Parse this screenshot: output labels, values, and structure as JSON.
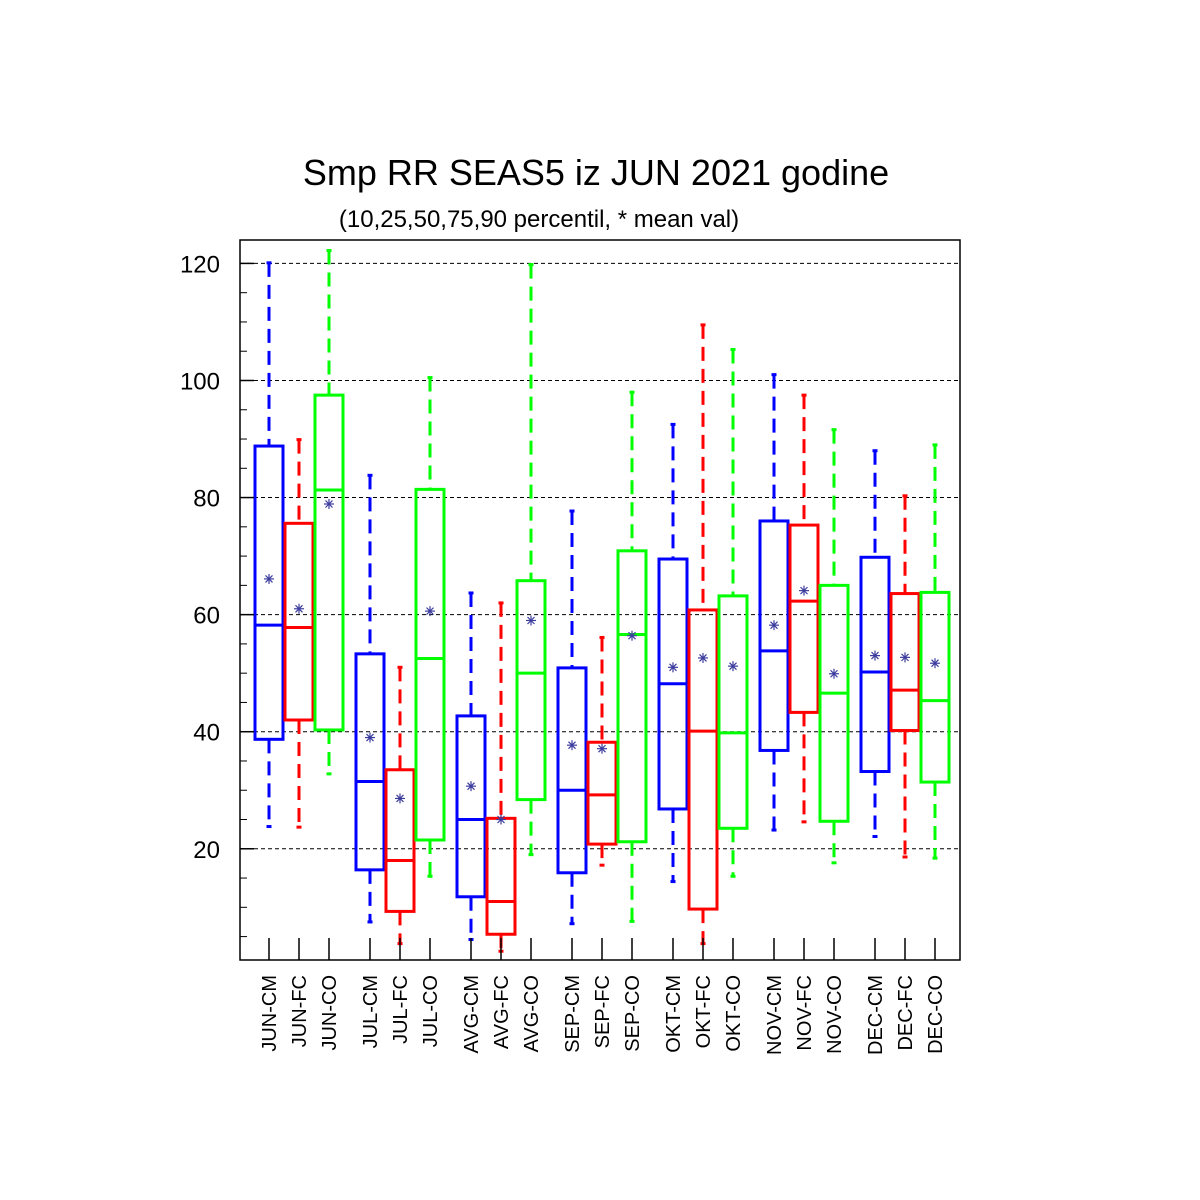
{
  "chart_data": {
    "type": "box",
    "title": "Smp RR SEAS5 iz JUN 2021 godine",
    "subtitle": "(10,25,50,75,90 percentil, * mean val)",
    "ylim": [
      1,
      124
    ],
    "yticks": [
      "20",
      "40",
      "60",
      "80",
      "100",
      "120"
    ],
    "grid": "horizontal dashed at labeled ticks",
    "series_colors": {
      "CM": "#0000ff",
      "FC": "#ff0000",
      "CO": "#00ff00"
    },
    "mean_marker_color": "#3d3d9e",
    "groups": [
      {
        "month": "JUN",
        "boxes": [
          {
            "label": "JUN-CM",
            "kind": "CM",
            "p10": 23.8,
            "p25": 38.7,
            "p50": 58.2,
            "p75": 88.8,
            "p90": 120.1,
            "mean": 66.1
          },
          {
            "label": "JUN-FC",
            "kind": "FC",
            "p10": 23.7,
            "p25": 42.0,
            "p50": 57.8,
            "p75": 75.6,
            "p90": 89.9,
            "mean": 61.0
          },
          {
            "label": "JUN-CO",
            "kind": "CO",
            "p10": 32.8,
            "p25": 40.3,
            "p50": 81.3,
            "p75": 97.5,
            "p90": 122.2,
            "mean": 78.9
          }
        ]
      },
      {
        "month": "JUL",
        "boxes": [
          {
            "label": "JUL-CM",
            "kind": "CM",
            "p10": 7.5,
            "p25": 16.4,
            "p50": 31.5,
            "p75": 53.3,
            "p90": 83.8,
            "mean": 39.0
          },
          {
            "label": "JUL-FC",
            "kind": "FC",
            "p10": 3.8,
            "p25": 9.3,
            "p50": 18.0,
            "p75": 33.5,
            "p90": 51.0,
            "mean": 28.6
          },
          {
            "label": "JUL-CO",
            "kind": "CO",
            "p10": 15.3,
            "p25": 21.5,
            "p50": 52.5,
            "p75": 81.4,
            "p90": 100.5,
            "mean": 60.6
          }
        ]
      },
      {
        "month": "AVG",
        "boxes": [
          {
            "label": "AVG-CM",
            "kind": "CM",
            "p10": 4.5,
            "p25": 11.8,
            "p50": 25.0,
            "p75": 42.7,
            "p90": 63.7,
            "mean": 30.7
          },
          {
            "label": "AVG-FC",
            "kind": "FC",
            "p10": 2.5,
            "p25": 5.4,
            "p50": 11.0,
            "p75": 25.2,
            "p90": 62.0,
            "mean": 25.0
          },
          {
            "label": "AVG-CO",
            "kind": "CO",
            "p10": 19.0,
            "p25": 28.4,
            "p50": 50.0,
            "p75": 65.8,
            "p90": 119.8,
            "mean": 59.0
          }
        ]
      },
      {
        "month": "SEP",
        "boxes": [
          {
            "label": "SEP-CM",
            "kind": "CM",
            "p10": 7.2,
            "p25": 15.9,
            "p50": 30.0,
            "p75": 50.9,
            "p90": 77.7,
            "mean": 37.7
          },
          {
            "label": "SEP-FC",
            "kind": "FC",
            "p10": 17.2,
            "p25": 20.8,
            "p50": 29.2,
            "p75": 38.2,
            "p90": 56.1,
            "mean": 37.1
          },
          {
            "label": "SEP-CO",
            "kind": "CO",
            "p10": 7.6,
            "p25": 21.2,
            "p50": 56.6,
            "p75": 70.9,
            "p90": 98.0,
            "mean": 56.4
          }
        ]
      },
      {
        "month": "OKT",
        "boxes": [
          {
            "label": "OKT-CM",
            "kind": "CM",
            "p10": 14.4,
            "p25": 26.8,
            "p50": 48.2,
            "p75": 69.5,
            "p90": 92.5,
            "mean": 51.0
          },
          {
            "label": "OKT-FC",
            "kind": "FC",
            "p10": 3.8,
            "p25": 9.7,
            "p50": 40.1,
            "p75": 60.8,
            "p90": 109.5,
            "mean": 52.6
          },
          {
            "label": "OKT-CO",
            "kind": "CO",
            "p10": 15.3,
            "p25": 23.5,
            "p50": 39.8,
            "p75": 63.2,
            "p90": 105.3,
            "mean": 51.2
          }
        ]
      },
      {
        "month": "NOV",
        "boxes": [
          {
            "label": "NOV-CM",
            "kind": "CM",
            "p10": 23.2,
            "p25": 36.8,
            "p50": 53.8,
            "p75": 76.0,
            "p90": 101.0,
            "mean": 58.2
          },
          {
            "label": "NOV-FC",
            "kind": "FC",
            "p10": 24.6,
            "p25": 43.3,
            "p50": 62.3,
            "p75": 75.3,
            "p90": 97.5,
            "mean": 64.1
          },
          {
            "label": "NOV-CO",
            "kind": "CO",
            "p10": 17.6,
            "p25": 24.7,
            "p50": 46.6,
            "p75": 65.0,
            "p90": 91.6,
            "mean": 49.9
          }
        ]
      },
      {
        "month": "DEC",
        "boxes": [
          {
            "label": "DEC-CM",
            "kind": "CM",
            "p10": 22.1,
            "p25": 33.2,
            "p50": 50.2,
            "p75": 69.8,
            "p90": 88.0,
            "mean": 53.0
          },
          {
            "label": "DEC-FC",
            "kind": "FC",
            "p10": 18.6,
            "p25": 40.2,
            "p50": 47.1,
            "p75": 63.6,
            "p90": 80.3,
            "mean": 52.7
          },
          {
            "label": "DEC-CO",
            "kind": "CO",
            "p10": 18.4,
            "p25": 31.4,
            "p50": 45.3,
            "p75": 63.8,
            "p90": 89.0,
            "mean": 51.7
          }
        ]
      }
    ]
  }
}
